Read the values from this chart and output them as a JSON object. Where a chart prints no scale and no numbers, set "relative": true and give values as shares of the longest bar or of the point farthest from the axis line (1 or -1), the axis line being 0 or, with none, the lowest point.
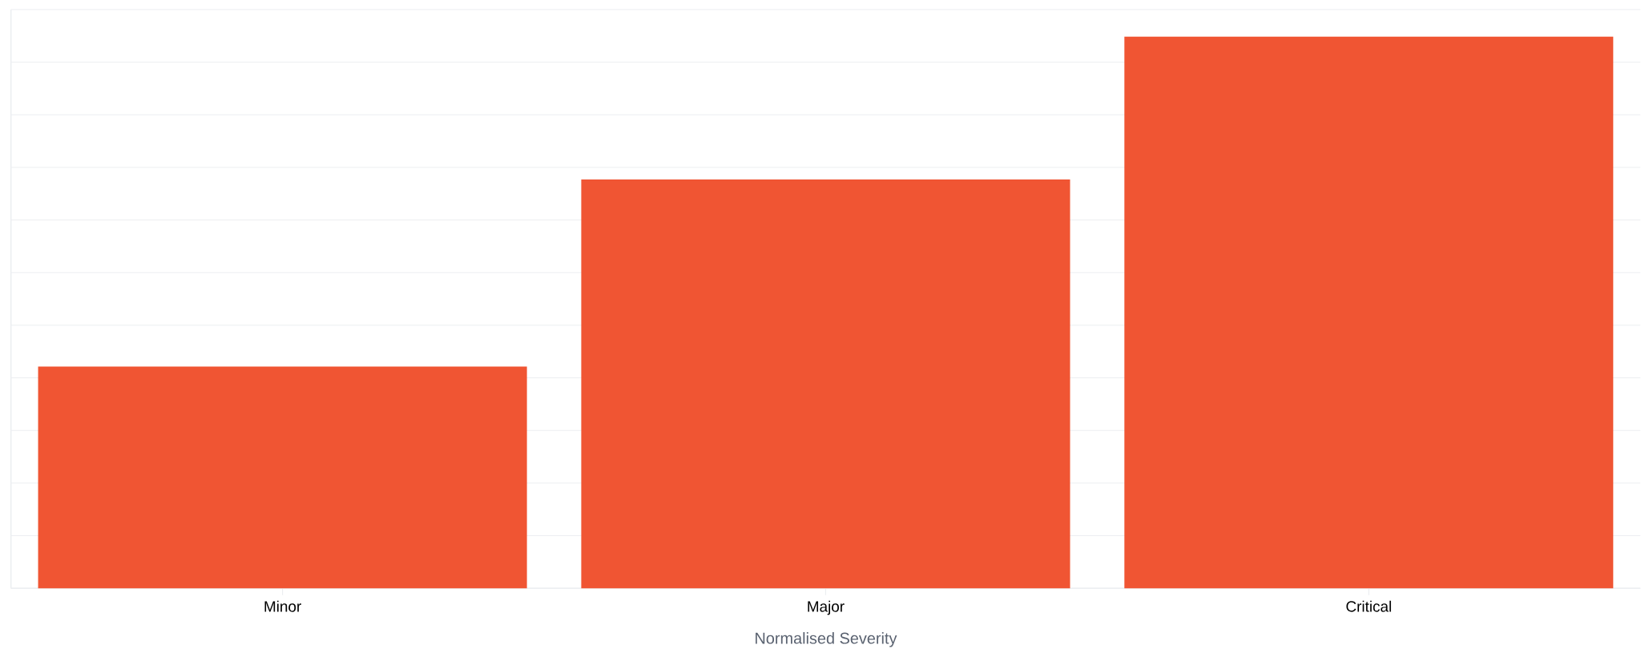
{
  "chart_data": {
    "type": "bar",
    "xlabel": "Normalised Severity",
    "categories": [
      "Minor",
      "Major",
      "Critical"
    ],
    "values": [
      0.402,
      0.741,
      1
    ],
    "color": "#f05533",
    "relative": true,
    "grid": "y"
  }
}
